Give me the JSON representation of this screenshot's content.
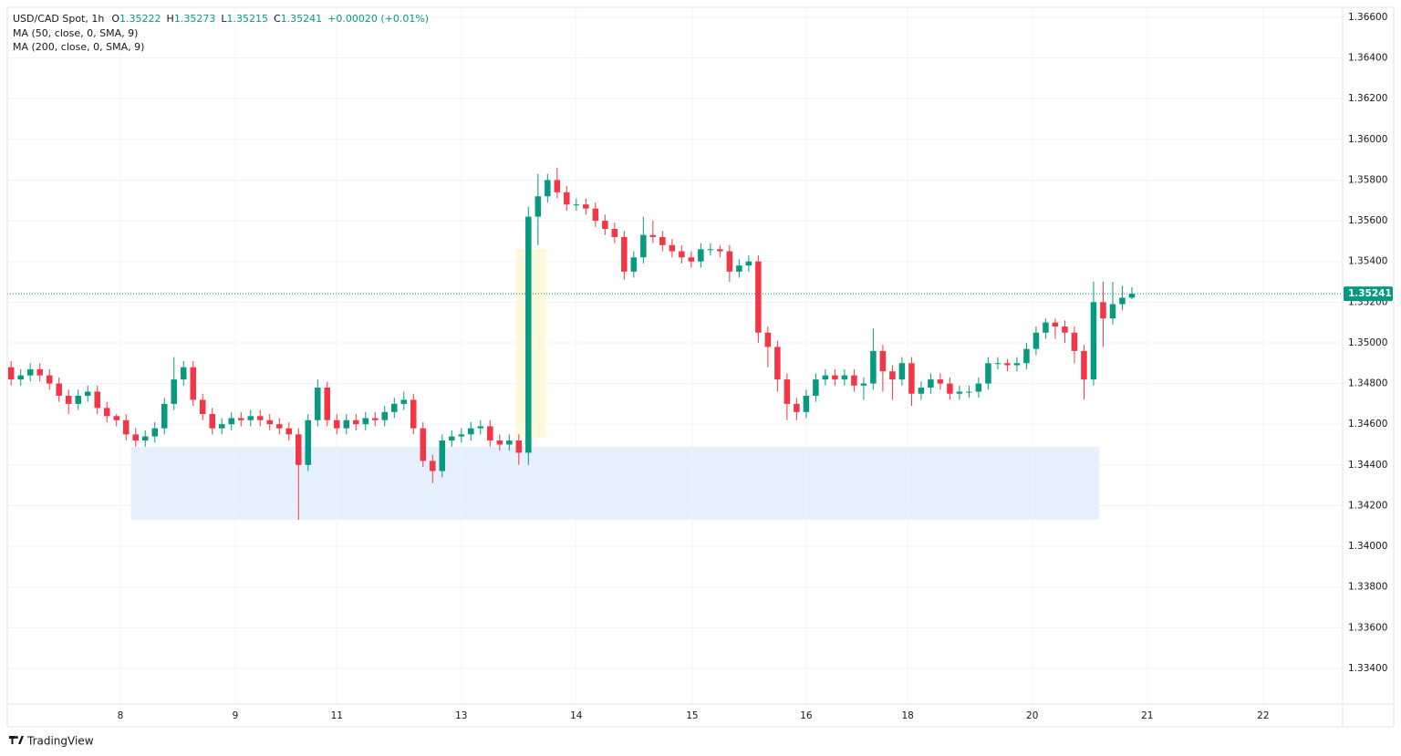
{
  "chart_data": {
    "type": "candlestick",
    "symbol": "USD/CAD Spot",
    "interval": "1h",
    "ohlc_labels": [
      "O",
      "H",
      "L",
      "C"
    ],
    "change_label": "+0.00020 (+0.01%)",
    "indicators": [
      "MA (50, close, 0, SMA, 9)",
      "MA (200, close, 0, SMA, 9)"
    ],
    "brand": "TradingView",
    "up_color": "#089981",
    "down_color": "#f23645",
    "grid": true,
    "xlim": [
      -0.4,
      139
    ],
    "ylim": [
      1.33225,
      1.36649
    ],
    "xticks": [
      {
        "value": 11.4,
        "label": "8"
      },
      {
        "value": 23.4,
        "label": "9"
      },
      {
        "value": 34,
        "label": "11"
      },
      {
        "value": 47,
        "label": "13"
      },
      {
        "value": 59,
        "label": "14"
      },
      {
        "value": 71.1,
        "label": "15"
      },
      {
        "value": 83,
        "label": "16"
      },
      {
        "value": 93.6,
        "label": "18"
      },
      {
        "value": 106.6,
        "label": "20"
      },
      {
        "value": 118.6,
        "label": "21"
      },
      {
        "value": 130.7,
        "label": "22"
      }
    ],
    "yticks": [
      {
        "value": 1.334,
        "label": "1.33400"
      },
      {
        "value": 1.336,
        "label": "1.33600"
      },
      {
        "value": 1.338,
        "label": "1.33800"
      },
      {
        "value": 1.34,
        "label": "1.34000"
      },
      {
        "value": 1.342,
        "label": "1.34200"
      },
      {
        "value": 1.344,
        "label": "1.34400"
      },
      {
        "value": 1.346,
        "label": "1.34600"
      },
      {
        "value": 1.348,
        "label": "1.34800"
      },
      {
        "value": 1.35,
        "label": "1.35000"
      },
      {
        "value": 1.352,
        "label": "1.35200"
      },
      {
        "value": 1.354,
        "label": "1.35400"
      },
      {
        "value": 1.356,
        "label": "1.35600"
      },
      {
        "value": 1.358,
        "label": "1.35800"
      },
      {
        "value": 1.36,
        "label": "1.36000"
      },
      {
        "value": 1.362,
        "label": "1.36200"
      },
      {
        "value": 1.364,
        "label": "1.36400"
      },
      {
        "value": 1.366,
        "label": "1.36600"
      }
    ],
    "zones": [
      {
        "x": [
          52.7,
          55.9
        ],
        "y": [
          1.34534,
          1.35462
        ],
        "color": "#fff9db"
      },
      {
        "x": [
          12.5,
          113.6
        ],
        "y": [
          1.34131,
          1.34489
        ],
        "color": "#e6f0fd"
      }
    ],
    "open": [
      1.3488,
      1.3482,
      1.3484,
      1.3487,
      1.3484,
      1.348,
      1.3474,
      1.347,
      1.3474,
      1.3476,
      1.3468,
      1.3464,
      1.3462,
      1.3455,
      1.3452,
      1.3454,
      1.3458,
      1.347,
      1.3482,
      1.3488,
      1.3472,
      1.3465,
      1.3458,
      1.346,
      1.3463,
      1.3462,
      1.3464,
      1.3462,
      1.346,
      1.3458,
      1.3455,
      1.344,
      1.3462,
      1.3478,
      1.3462,
      1.3458,
      1.3462,
      1.346,
      1.3463,
      1.3462,
      1.3466,
      1.347,
      1.3472,
      1.3458,
      1.3442,
      1.3437,
      1.3452,
      1.3454,
      1.3455,
      1.3458,
      1.3459,
      1.3452,
      1.345,
      1.3452,
      1.3446,
      1.3562,
      1.3572,
      1.358,
      1.3574,
      1.3568,
      1.3568,
      1.3566,
      1.356,
      1.3556,
      1.3552,
      1.3535,
      1.3542,
      1.3553,
      1.3552,
      1.3548,
      1.3545,
      1.3542,
      1.354,
      1.3546,
      1.3546,
      1.3545,
      1.3535,
      1.3538,
      1.354,
      1.3505,
      1.3498,
      1.3482,
      1.347,
      1.3466,
      1.3474,
      1.3482,
      1.3484,
      1.3482,
      1.3484,
      1.3479,
      1.348,
      1.3496,
      1.3486,
      1.3482,
      1.349,
      1.3475,
      1.3478,
      1.3482,
      1.348,
      1.3475,
      1.3476,
      1.3476,
      1.348,
      1.349,
      1.349,
      1.3489,
      1.349,
      1.3497,
      1.3505,
      1.351,
      1.3508,
      1.3505,
      1.3496,
      1.3482,
      1.352,
      1.3512,
      1.3519,
      1.35222
    ],
    "high": [
      1.3491,
      1.3487,
      1.349,
      1.349,
      1.3487,
      1.3483,
      1.3477,
      1.3477,
      1.3479,
      1.3479,
      1.3471,
      1.3465,
      1.3465,
      1.3458,
      1.3457,
      1.3461,
      1.3473,
      1.3493,
      1.3491,
      1.3491,
      1.3475,
      1.3468,
      1.3463,
      1.3466,
      1.3466,
      1.3467,
      1.3467,
      1.3465,
      1.3463,
      1.3461,
      1.3458,
      1.3465,
      1.3482,
      1.3481,
      1.3465,
      1.3465,
      1.3465,
      1.3466,
      1.3466,
      1.3469,
      1.3473,
      1.3476,
      1.3475,
      1.3461,
      1.3445,
      1.3455,
      1.3457,
      1.3458,
      1.3461,
      1.3462,
      1.3462,
      1.3455,
      1.3455,
      1.3455,
      1.3567,
      1.3583,
      1.3583,
      1.3586,
      1.3577,
      1.3571,
      1.3571,
      1.3569,
      1.3563,
      1.3559,
      1.3555,
      1.3545,
      1.3562,
      1.356,
      1.3555,
      1.3551,
      1.3548,
      1.3545,
      1.3549,
      1.3549,
      1.3548,
      1.3548,
      1.3541,
      1.3543,
      1.3543,
      1.3508,
      1.3501,
      1.3485,
      1.3473,
      1.3477,
      1.3485,
      1.3487,
      1.3487,
      1.3487,
      1.3487,
      1.3483,
      1.3507,
      1.3499,
      1.3489,
      1.3493,
      1.3493,
      1.3481,
      1.3485,
      1.3485,
      1.3483,
      1.3479,
      1.3479,
      1.3483,
      1.3493,
      1.3493,
      1.3492,
      1.3493,
      1.35,
      1.3508,
      1.3512,
      1.3512,
      1.3511,
      1.3508,
      1.3499,
      1.353,
      1.353,
      1.353,
      1.3528,
      1.35273
    ],
    "low": [
      1.3479,
      1.3479,
      1.3481,
      1.3481,
      1.3477,
      1.3471,
      1.3465,
      1.3467,
      1.3471,
      1.3465,
      1.3461,
      1.3459,
      1.3452,
      1.3449,
      1.3449,
      1.3451,
      1.3455,
      1.3467,
      1.3479,
      1.3469,
      1.3462,
      1.3455,
      1.3455,
      1.3457,
      1.3459,
      1.3459,
      1.3459,
      1.3457,
      1.3455,
      1.3452,
      1.3413,
      1.3437,
      1.3459,
      1.3459,
      1.3455,
      1.3455,
      1.3457,
      1.3457,
      1.3459,
      1.3459,
      1.3463,
      1.3467,
      1.3455,
      1.3439,
      1.3431,
      1.3434,
      1.3449,
      1.3451,
      1.3452,
      1.3455,
      1.3449,
      1.3447,
      1.3447,
      1.344,
      1.344,
      1.3548,
      1.3569,
      1.3571,
      1.3565,
      1.3565,
      1.3563,
      1.3557,
      1.3553,
      1.3549,
      1.3531,
      1.3532,
      1.3539,
      1.3549,
      1.3545,
      1.3542,
      1.3539,
      1.3537,
      1.3537,
      1.3543,
      1.3542,
      1.353,
      1.3532,
      1.3535,
      1.35,
      1.3488,
      1.3476,
      1.3462,
      1.3462,
      1.3463,
      1.3471,
      1.3479,
      1.3479,
      1.3479,
      1.3476,
      1.3472,
      1.3477,
      1.3476,
      1.3472,
      1.3479,
      1.3469,
      1.3472,
      1.3475,
      1.3477,
      1.3472,
      1.3472,
      1.3473,
      1.3473,
      1.3477,
      1.3487,
      1.3486,
      1.3486,
      1.3487,
      1.3494,
      1.3502,
      1.3502,
      1.35,
      1.349,
      1.3472,
      1.3479,
      1.3498,
      1.3509,
      1.3516,
      1.35215
    ],
    "close": [
      1.3482,
      1.3484,
      1.3487,
      1.3484,
      1.348,
      1.3474,
      1.347,
      1.3474,
      1.3476,
      1.3468,
      1.3464,
      1.3462,
      1.3455,
      1.3452,
      1.3454,
      1.3458,
      1.347,
      1.3482,
      1.3488,
      1.3472,
      1.3465,
      1.3458,
      1.346,
      1.3463,
      1.3462,
      1.3464,
      1.3462,
      1.346,
      1.3458,
      1.3455,
      1.344,
      1.3462,
      1.3478,
      1.3462,
      1.3458,
      1.3462,
      1.346,
      1.3463,
      1.3462,
      1.3466,
      1.347,
      1.3472,
      1.3458,
      1.3442,
      1.3437,
      1.3452,
      1.3454,
      1.3455,
      1.3458,
      1.3459,
      1.3452,
      1.345,
      1.3452,
      1.3446,
      1.3562,
      1.3572,
      1.358,
      1.3574,
      1.3568,
      1.3568,
      1.3566,
      1.356,
      1.3556,
      1.3552,
      1.3535,
      1.3542,
      1.3553,
      1.3552,
      1.3548,
      1.3545,
      1.3542,
      1.354,
      1.3546,
      1.3546,
      1.3545,
      1.3535,
      1.3538,
      1.354,
      1.3505,
      1.3498,
      1.3482,
      1.347,
      1.3466,
      1.3474,
      1.3482,
      1.3484,
      1.3482,
      1.3484,
      1.3479,
      1.348,
      1.3496,
      1.3486,
      1.3482,
      1.349,
      1.3475,
      1.3478,
      1.3482,
      1.348,
      1.3475,
      1.3476,
      1.3476,
      1.348,
      1.349,
      1.349,
      1.3489,
      1.349,
      1.3497,
      1.3505,
      1.351,
      1.3508,
      1.3505,
      1.3496,
      1.3482,
      1.352,
      1.3512,
      1.3519,
      1.35222,
      1.35241
    ]
  }
}
